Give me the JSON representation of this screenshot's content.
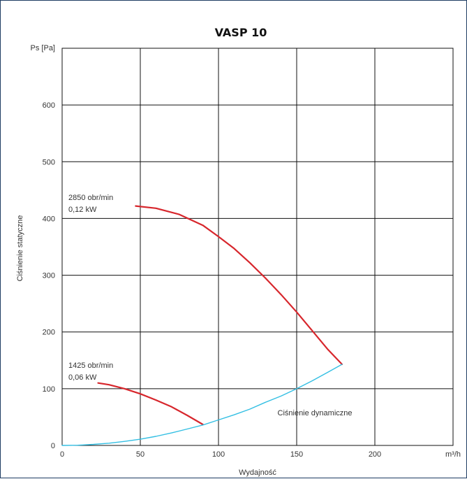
{
  "chart_data": {
    "type": "line",
    "title": "VASP 10",
    "xlabel": "Wydajność",
    "ylabel": "Ciśnienie statyczne",
    "x_unit": "m³/h",
    "y_unit": "Ps [Pa]",
    "xlim": [
      0,
      250
    ],
    "ylim": [
      0,
      700
    ],
    "x_ticks": [
      "0",
      "50",
      "100",
      "150",
      "200"
    ],
    "y_ticks": [
      "0",
      "100",
      "200",
      "300",
      "400",
      "500",
      "600"
    ],
    "grid": true,
    "series": [
      {
        "label": [
          "2850 obr/min",
          "0,12 kW"
        ],
        "color": "#d7262c",
        "x": [
          47,
          60,
          75,
          90,
          100,
          110,
          120,
          130,
          140,
          150,
          160,
          170,
          179
        ],
        "y": [
          422,
          418,
          407,
          388,
          368,
          347,
          322,
          295,
          266,
          235,
          202,
          169,
          143
        ]
      },
      {
        "label": [
          "1425 obr/min",
          "0,06 kW"
        ],
        "color": "#d7262c",
        "x": [
          23,
          30,
          40,
          50,
          60,
          70,
          80,
          90
        ],
        "y": [
          110,
          107,
          100,
          91,
          80,
          68,
          53,
          37
        ]
      },
      {
        "label": [
          "Ciśnienie dynamiczne"
        ],
        "color": "#33bfe3",
        "x": [
          0,
          10,
          20,
          30,
          40,
          50,
          60,
          70,
          80,
          90,
          100,
          110,
          120,
          130,
          140,
          150,
          160,
          170,
          179
        ],
        "y": [
          0,
          0.4,
          1.8,
          4.0,
          7.1,
          11,
          16,
          22,
          29,
          36,
          45,
          54,
          64,
          76,
          87,
          100,
          114,
          129,
          143
        ]
      }
    ]
  }
}
